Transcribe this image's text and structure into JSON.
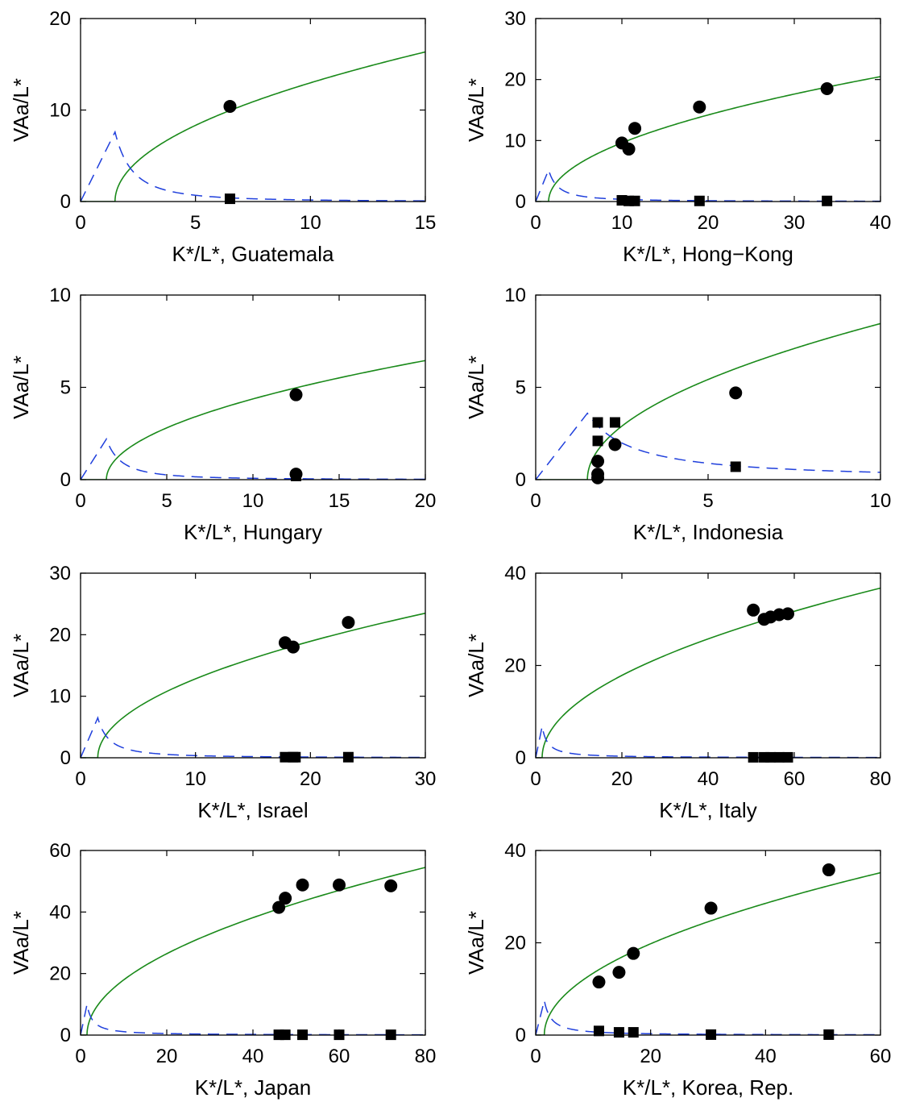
{
  "colors": {
    "green_curve": "#1a8a1a",
    "blue_curve": "#1f3fdc",
    "marker": "#000000",
    "axes": "#000000"
  },
  "chart_data": [
    {
      "type": "scatter",
      "xlabel": "K*/L*, Guatemala",
      "ylabel": "VAa/L*",
      "xlim": [
        0,
        15
      ],
      "ylim": [
        0,
        20
      ],
      "xticks": [
        0,
        5,
        10,
        15
      ],
      "yticks": [
        0,
        10,
        20
      ],
      "series": [
        {
          "marker": "circle",
          "points": [
            [
              6.5,
              10.4
            ]
          ]
        },
        {
          "marker": "square",
          "points": [
            [
              6.5,
              0.3
            ]
          ]
        }
      ],
      "curves": {
        "green_solid": {
          "x0": 1.5,
          "coef": 4.45,
          "exp": 0.5
        },
        "blue_dashed": {
          "peak_x": 1.5,
          "peak_y": 7.6,
          "tail": "decay"
        }
      }
    },
    {
      "type": "scatter",
      "xlabel": "K*/L*, Hong−Kong",
      "ylabel": "VAa/L*",
      "xlim": [
        0,
        40
      ],
      "ylim": [
        0,
        30
      ],
      "xticks": [
        0,
        10,
        20,
        30,
        40
      ],
      "yticks": [
        0,
        10,
        20,
        30
      ],
      "series": [
        {
          "marker": "circle",
          "points": [
            [
              10.0,
              9.6
            ],
            [
              10.8,
              8.6
            ],
            [
              11.5,
              12.0
            ],
            [
              19.0,
              15.5
            ],
            [
              33.8,
              18.5
            ]
          ]
        },
        {
          "marker": "square",
          "points": [
            [
              10.0,
              0.2
            ],
            [
              10.8,
              0.1
            ],
            [
              11.5,
              0.1
            ],
            [
              19.0,
              0.1
            ],
            [
              33.8,
              0.1
            ]
          ]
        }
      ],
      "curves": {
        "green_solid": {
          "x0": 1.5,
          "coef": 3.3,
          "exp": 0.5
        },
        "blue_dashed": {
          "peak_x": 1.5,
          "peak_y": 5.2,
          "tail": "decay"
        }
      }
    },
    {
      "type": "scatter",
      "xlabel": "K*/L*, Hungary",
      "ylabel": "VAa/L*",
      "xlim": [
        0,
        20
      ],
      "ylim": [
        0,
        10
      ],
      "xticks": [
        0,
        5,
        10,
        15,
        20
      ],
      "yticks": [
        0,
        5,
        10
      ],
      "series": [
        {
          "marker": "circle",
          "points": [
            [
              12.5,
              4.6
            ],
            [
              12.5,
              0.3
            ]
          ]
        },
        {
          "marker": "square",
          "points": [
            [
              12.5,
              0.2
            ]
          ]
        }
      ],
      "curves": {
        "green_solid": {
          "x0": 1.5,
          "coef": 1.5,
          "exp": 0.5
        },
        "blue_dashed": {
          "peak_x": 1.5,
          "peak_y": 2.2,
          "tail": "decay"
        }
      }
    },
    {
      "type": "scatter",
      "xlabel": "K*/L*, Indonesia",
      "ylabel": "VAa/L*",
      "xlim": [
        0,
        10
      ],
      "ylim": [
        0,
        10
      ],
      "xticks": [
        0,
        5,
        10
      ],
      "yticks": [
        0,
        5,
        10
      ],
      "series": [
        {
          "marker": "circle",
          "points": [
            [
              1.8,
              1.0
            ],
            [
              1.8,
              0.3
            ],
            [
              1.8,
              0.1
            ],
            [
              2.3,
              1.9
            ],
            [
              5.8,
              4.7
            ]
          ]
        },
        {
          "marker": "square",
          "points": [
            [
              1.8,
              3.1
            ],
            [
              1.8,
              2.1
            ],
            [
              2.3,
              3.1
            ],
            [
              5.8,
              0.7
            ]
          ]
        }
      ],
      "curves": {
        "green_solid": {
          "x0": 1.5,
          "coef": 2.9,
          "exp": 0.5
        },
        "blue_dashed": {
          "peak_x": 1.5,
          "peak_y": 3.6,
          "tail": "slow"
        }
      }
    },
    {
      "type": "scatter",
      "xlabel": "K*/L*, Israel",
      "ylabel": "VAa/L*",
      "xlim": [
        0,
        30
      ],
      "ylim": [
        0,
        30
      ],
      "xticks": [
        0,
        10,
        20,
        30
      ],
      "yticks": [
        0,
        10,
        20,
        30
      ],
      "series": [
        {
          "marker": "circle",
          "points": [
            [
              17.8,
              18.7
            ],
            [
              18.5,
              18.0
            ],
            [
              23.3,
              22.0
            ]
          ]
        },
        {
          "marker": "square",
          "points": [
            [
              17.8,
              0.1
            ],
            [
              18.5,
              0.1
            ],
            [
              18.7,
              0.1
            ],
            [
              23.3,
              0.1
            ]
          ]
        }
      ],
      "curves": {
        "green_solid": {
          "x0": 1.5,
          "coef": 4.4,
          "exp": 0.5
        },
        "blue_dashed": {
          "peak_x": 1.5,
          "peak_y": 6.5,
          "tail": "decay"
        }
      }
    },
    {
      "type": "scatter",
      "xlabel": "K*/L*, Italy",
      "ylabel": "VAa/L*",
      "xlim": [
        0,
        80
      ],
      "ylim": [
        0,
        40
      ],
      "xticks": [
        0,
        20,
        40,
        60,
        80
      ],
      "yticks": [
        0,
        20,
        40
      ],
      "series": [
        {
          "marker": "circle",
          "points": [
            [
              50.5,
              32.0
            ],
            [
              53.0,
              30.0
            ],
            [
              54.5,
              30.5
            ],
            [
              56.5,
              31.0
            ],
            [
              58.5,
              31.2
            ]
          ]
        },
        {
          "marker": "square",
          "points": [
            [
              50.5,
              0.1
            ],
            [
              53.0,
              0.1
            ],
            [
              54.5,
              0.1
            ],
            [
              56.5,
              0.1
            ],
            [
              58.5,
              0.1
            ]
          ]
        }
      ],
      "curves": {
        "green_solid": {
          "x0": 1.5,
          "coef": 4.15,
          "exp": 0.5
        },
        "blue_dashed": {
          "peak_x": 1.5,
          "peak_y": 6.8,
          "tail": "decay"
        }
      }
    },
    {
      "type": "scatter",
      "xlabel": "K*/L*, Japan",
      "ylabel": "VAa/L*",
      "xlim": [
        0,
        80
      ],
      "ylim": [
        0,
        60
      ],
      "xticks": [
        0,
        20,
        40,
        60,
        80
      ],
      "yticks": [
        0,
        20,
        40,
        60
      ],
      "series": [
        {
          "marker": "circle",
          "points": [
            [
              46.0,
              41.5
            ],
            [
              47.5,
              44.5
            ],
            [
              51.5,
              48.8
            ],
            [
              60.0,
              48.8
            ],
            [
              72.0,
              48.5
            ]
          ]
        },
        {
          "marker": "square",
          "points": [
            [
              46.0,
              0.1
            ],
            [
              47.5,
              0.1
            ],
            [
              51.5,
              0.1
            ],
            [
              60.0,
              0.1
            ],
            [
              72.0,
              0.1
            ]
          ]
        }
      ],
      "curves": {
        "green_solid": {
          "x0": 1.5,
          "coef": 6.15,
          "exp": 0.5
        },
        "blue_dashed": {
          "peak_x": 1.5,
          "peak_y": 10.0,
          "tail": "decay"
        }
      }
    },
    {
      "type": "scatter",
      "xlabel": "K*/L*, Korea, Rep.",
      "ylabel": "VAa/L*",
      "xlim": [
        0,
        60
      ],
      "ylim": [
        0,
        40
      ],
      "xticks": [
        0,
        20,
        40,
        60
      ],
      "yticks": [
        0,
        20,
        40
      ],
      "series": [
        {
          "marker": "circle",
          "points": [
            [
              11.0,
              11.5
            ],
            [
              14.5,
              13.6
            ],
            [
              17.0,
              17.7
            ],
            [
              30.5,
              27.5
            ],
            [
              51.0,
              35.8
            ]
          ]
        },
        {
          "marker": "square",
          "points": [
            [
              11.0,
              0.9
            ],
            [
              14.5,
              0.6
            ],
            [
              17.0,
              0.6
            ],
            [
              30.5,
              0.1
            ],
            [
              51.0,
              0.1
            ]
          ]
        }
      ],
      "curves": {
        "green_solid": {
          "x0": 1.5,
          "coef": 4.6,
          "exp": 0.5
        },
        "blue_dashed": {
          "peak_x": 1.5,
          "peak_y": 7.5,
          "tail": "decay"
        }
      }
    }
  ]
}
